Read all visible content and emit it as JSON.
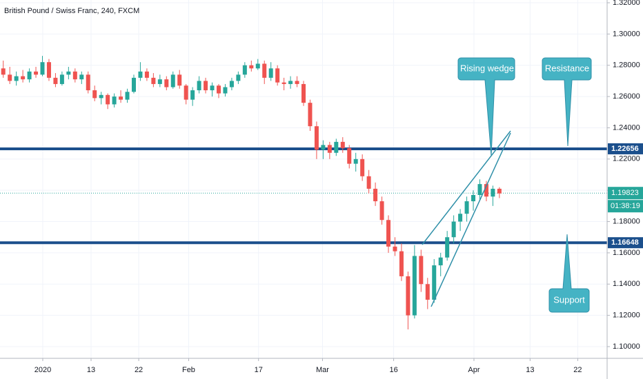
{
  "chart_data": {
    "type": "candlestick",
    "title": "British Pound / Swiss Franc, 240, FXCM",
    "open": [
      1.278,
      1.274,
      1.27,
      1.273,
      1.271,
      1.276,
      1.274,
      1.282,
      1.272,
      1.268,
      1.274,
      1.276,
      1.271,
      1.274,
      1.264,
      1.259,
      1.261,
      1.255,
      1.26,
      1.258,
      1.263,
      1.272,
      1.276,
      1.272,
      1.268,
      1.271,
      1.266,
      1.274,
      1.267,
      1.258,
      1.264,
      1.27,
      1.264,
      1.267,
      1.262,
      1.266,
      1.27,
      1.274,
      1.28,
      1.278,
      1.281,
      1.272,
      1.278,
      1.269,
      1.268,
      1.27,
      1.268,
      1.256,
      1.241,
      1.226,
      1.229,
      1.224,
      1.231,
      1.227,
      1.217,
      1.22,
      1.209,
      1.201,
      1.193,
      1.181,
      1.164,
      1.161,
      1.145,
      1.12,
      1.158,
      1.14,
      1.13,
      1.152,
      1.157,
      1.17,
      1.18,
      1.185,
      1.193,
      1.197,
      1.204,
      1.196,
      1.201
    ],
    "high": [
      1.283,
      1.279,
      1.276,
      1.277,
      1.278,
      1.279,
      1.286,
      1.284,
      1.275,
      1.276,
      1.279,
      1.278,
      1.276,
      1.276,
      1.267,
      1.263,
      1.262,
      1.262,
      1.264,
      1.265,
      1.274,
      1.282,
      1.278,
      1.275,
      1.274,
      1.273,
      1.276,
      1.277,
      1.268,
      1.266,
      1.273,
      1.272,
      1.269,
      1.268,
      1.268,
      1.272,
      1.276,
      1.282,
      1.283,
      1.284,
      1.283,
      1.282,
      1.28,
      1.272,
      1.273,
      1.273,
      1.27,
      1.258,
      1.244,
      1.232,
      1.231,
      1.233,
      1.234,
      1.229,
      1.224,
      1.223,
      1.213,
      1.205,
      1.196,
      1.184,
      1.17,
      1.166,
      1.148,
      1.165,
      1.162,
      1.144,
      1.156,
      1.16,
      1.174,
      1.184,
      1.188,
      1.196,
      1.2,
      1.207,
      1.206,
      1.203,
      1.202
    ],
    "low": [
      1.272,
      1.268,
      1.267,
      1.269,
      1.269,
      1.272,
      1.273,
      1.27,
      1.266,
      1.267,
      1.271,
      1.269,
      1.268,
      1.262,
      1.257,
      1.255,
      1.252,
      1.253,
      1.256,
      1.256,
      1.262,
      1.27,
      1.27,
      1.266,
      1.266,
      1.264,
      1.265,
      1.265,
      1.255,
      1.254,
      1.262,
      1.262,
      1.26,
      1.259,
      1.26,
      1.264,
      1.268,
      1.272,
      1.276,
      1.277,
      1.268,
      1.27,
      1.267,
      1.264,
      1.265,
      1.266,
      1.254,
      1.238,
      1.22,
      1.22,
      1.22,
      1.222,
      1.224,
      1.214,
      1.212,
      1.206,
      1.198,
      1.19,
      1.178,
      1.16,
      1.158,
      1.142,
      1.111,
      1.118,
      1.135,
      1.124,
      1.128,
      1.145,
      1.155,
      1.166,
      1.174,
      1.18,
      1.187,
      1.194,
      1.193,
      1.19,
      1.195
    ],
    "close": [
      1.274,
      1.27,
      1.273,
      1.271,
      1.276,
      1.274,
      1.282,
      1.272,
      1.268,
      1.274,
      1.276,
      1.271,
      1.274,
      1.264,
      1.259,
      1.261,
      1.255,
      1.26,
      1.258,
      1.263,
      1.272,
      1.276,
      1.272,
      1.268,
      1.271,
      1.266,
      1.274,
      1.267,
      1.258,
      1.264,
      1.27,
      1.264,
      1.267,
      1.262,
      1.266,
      1.27,
      1.274,
      1.28,
      1.278,
      1.281,
      1.272,
      1.278,
      1.269,
      1.268,
      1.27,
      1.268,
      1.256,
      1.241,
      1.226,
      1.229,
      1.224,
      1.231,
      1.227,
      1.217,
      1.22,
      1.209,
      1.201,
      1.193,
      1.181,
      1.164,
      1.161,
      1.145,
      1.12,
      1.158,
      1.14,
      1.13,
      1.152,
      1.157,
      1.17,
      1.18,
      1.185,
      1.193,
      1.197,
      1.204,
      1.196,
      1.201,
      1.198
    ],
    "up_color": "#26a69a",
    "down_color": "#ef5350",
    "xlim": [
      0,
      93
    ],
    "xticks": [
      {
        "value": 6.55,
        "label": "2020"
      },
      {
        "value": 13.95,
        "label": "13"
      },
      {
        "value": 21.25,
        "label": "22"
      },
      {
        "value": 28.9,
        "label": "Feb"
      },
      {
        "value": 39.6,
        "label": "17"
      },
      {
        "value": 49.4,
        "label": "Mar"
      },
      {
        "value": 60.3,
        "label": "16"
      },
      {
        "value": 72.6,
        "label": "Apr"
      },
      {
        "value": 81.2,
        "label": "13"
      },
      {
        "value": 88.5,
        "label": "22"
      }
    ],
    "ylim": [
      1.09,
      1.32
    ],
    "yticks": [
      {
        "value": 1.1,
        "label": "1.10000"
      },
      {
        "value": 1.12,
        "label": "1.12000"
      },
      {
        "value": 1.14,
        "label": "1.14000"
      },
      {
        "value": 1.16,
        "label": "1.16000"
      },
      {
        "value": 1.18,
        "label": "1.18000"
      },
      {
        "value": 1.2,
        "label": "1.20000"
      },
      {
        "value": 1.22,
        "label": "1.22000"
      },
      {
        "value": 1.24,
        "label": "1.24000"
      },
      {
        "value": 1.26,
        "label": "1.26000"
      },
      {
        "value": 1.28,
        "label": "1.28000"
      },
      {
        "value": 1.3,
        "label": "1.30000"
      },
      {
        "value": 1.32,
        "label": "1.32000"
      }
    ],
    "grid": true,
    "levels": [
      {
        "value": 1.22656,
        "label": "1.22656",
        "color": "#1b4f8c"
      },
      {
        "value": 1.16648,
        "label": "1.16648",
        "color": "#1b4f8c"
      }
    ],
    "last_price": {
      "value": 1.19823,
      "label": "1.19823",
      "color": "#26a69a"
    },
    "countdown": "01:38:19",
    "annotations": [
      "Rising wedge",
      "Resistance",
      "Support"
    ]
  }
}
